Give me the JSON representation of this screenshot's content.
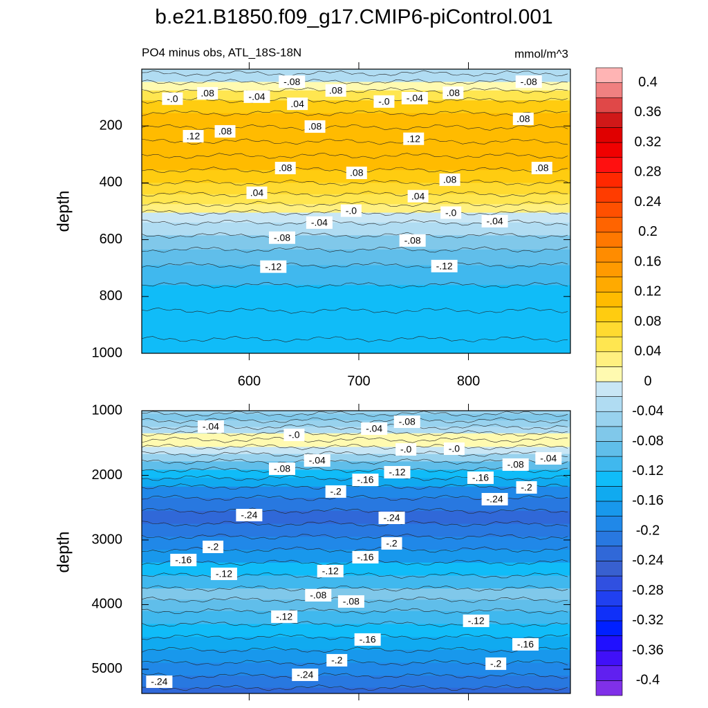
{
  "title": "b.e21.B1850.f09_g17.CMIP6-piControl.001",
  "chart_data": [
    {
      "type": "contour",
      "subtitle_left": "PO4 minus obs, ATL_18S-18N",
      "subtitle_right": "mmol/m^3",
      "ylabel": "depth",
      "xlim": [
        502,
        893
      ],
      "xticks": [
        600,
        700,
        800
      ],
      "xtick_labels": true,
      "ylim": [
        0,
        1000
      ],
      "yticks": [
        200,
        400,
        600,
        800,
        1000
      ],
      "depths": [
        0,
        30,
        60,
        90,
        130,
        180,
        230,
        280,
        330,
        380,
        420,
        460,
        490,
        520,
        560,
        610,
        660,
        720,
        800,
        900,
        1000
      ],
      "values": [
        -0.04,
        -0.04,
        0.0,
        0.05,
        0.08,
        0.1,
        0.11,
        0.11,
        0.1,
        0.08,
        0.06,
        0.04,
        0.02,
        -0.02,
        -0.04,
        -0.08,
        -0.1,
        -0.12,
        -0.14,
        -0.14,
        -0.14
      ],
      "contour_labels": [
        {
          "label": "-.08",
          "x": 639,
          "depth": 44
        },
        {
          "label": ".08",
          "x": 562,
          "depth": 85
        },
        {
          "label": "-.0",
          "x": 530,
          "depth": 104
        },
        {
          "label": "-.04",
          "x": 607,
          "depth": 97
        },
        {
          "label": ".04",
          "x": 644,
          "depth": 122
        },
        {
          "label": ".08",
          "x": 578,
          "depth": 219
        },
        {
          "label": ".12",
          "x": 549,
          "depth": 236
        },
        {
          "label": ".08",
          "x": 660,
          "depth": 202
        },
        {
          "label": "-.0",
          "x": 723,
          "depth": 114
        },
        {
          "label": ".08",
          "x": 679,
          "depth": 75
        },
        {
          "label": ".12",
          "x": 750,
          "depth": 245
        },
        {
          "label": ".08",
          "x": 633,
          "depth": 348
        },
        {
          "label": ".08",
          "x": 698,
          "depth": 365
        },
        {
          "label": ".04",
          "x": 607,
          "depth": 435
        },
        {
          "label": ".04",
          "x": 754,
          "depth": 447
        },
        {
          "label": "-.0",
          "x": 693,
          "depth": 498
        },
        {
          "label": "-.04",
          "x": 664,
          "depth": 540
        },
        {
          "label": "-.08",
          "x": 630,
          "depth": 593
        },
        {
          "label": "-.08",
          "x": 749,
          "depth": 603
        },
        {
          "label": "-.12",
          "x": 622,
          "depth": 695
        },
        {
          "label": "-.12",
          "x": 778,
          "depth": 693
        },
        {
          "label": "-.08",
          "x": 855,
          "depth": 44
        },
        {
          "label": ".08",
          "x": 850,
          "depth": 175
        },
        {
          "label": ".08",
          "x": 867,
          "depth": 348
        },
        {
          "label": ".08",
          "x": 783,
          "depth": 389
        },
        {
          "label": "-.0",
          "x": 784,
          "depth": 505
        },
        {
          "label": "-.04",
          "x": 824,
          "depth": 535
        },
        {
          "label": "-.04",
          "x": 751,
          "depth": 102
        },
        {
          "label": ".08",
          "x": 786,
          "depth": 83
        }
      ]
    },
    {
      "type": "contour",
      "ylabel": "depth",
      "xlim": [
        502,
        893
      ],
      "xticks": [
        600,
        700,
        800
      ],
      "xtick_labels": false,
      "ylim": [
        1000,
        5375
      ],
      "yticks": [
        1000,
        2000,
        3000,
        4000,
        5000
      ],
      "depths": [
        1000,
        1100,
        1200,
        1300,
        1400,
        1500,
        1620,
        1720,
        1850,
        1980,
        2100,
        2250,
        2450,
        2650,
        2850,
        3050,
        3250,
        3450,
        3650,
        3850,
        4000,
        4200,
        4400,
        4600,
        4800,
        5000,
        5200,
        5375
      ],
      "values": [
        -0.06,
        -0.08,
        -0.06,
        -0.04,
        0.01,
        0.01,
        -0.02,
        -0.06,
        -0.1,
        -0.14,
        -0.16,
        -0.2,
        -0.21,
        -0.23,
        -0.21,
        -0.19,
        -0.17,
        -0.13,
        -0.11,
        -0.08,
        -0.09,
        -0.11,
        -0.13,
        -0.15,
        -0.17,
        -0.19,
        -0.21,
        -0.23
      ],
      "contour_labels": [
        {
          "label": "-.04",
          "x": 565,
          "depth": 1246
        },
        {
          "label": "-.0",
          "x": 641,
          "depth": 1374
        },
        {
          "label": "-.04",
          "x": 714,
          "depth": 1278
        },
        {
          "label": "-.08",
          "x": 744,
          "depth": 1171
        },
        {
          "label": "-.0",
          "x": 743,
          "depth": 1599
        },
        {
          "label": "-.0",
          "x": 787,
          "depth": 1588
        },
        {
          "label": "-.04",
          "x": 662,
          "depth": 1770
        },
        {
          "label": "-.08",
          "x": 630,
          "depth": 1898
        },
        {
          "label": "-.12",
          "x": 735,
          "depth": 1952
        },
        {
          "label": "-.16",
          "x": 706,
          "depth": 2070
        },
        {
          "label": "-.2",
          "x": 679,
          "depth": 2251
        },
        {
          "label": "-.16",
          "x": 811,
          "depth": 2037
        },
        {
          "label": "-.08",
          "x": 843,
          "depth": 1834
        },
        {
          "label": "-.04",
          "x": 873,
          "depth": 1738
        },
        {
          "label": "-.2",
          "x": 853,
          "depth": 2187
        },
        {
          "label": "-.24",
          "x": 824,
          "depth": 2369
        },
        {
          "label": "-.24",
          "x": 600,
          "depth": 2615
        },
        {
          "label": "-.24",
          "x": 730,
          "depth": 2658
        },
        {
          "label": "-.2",
          "x": 730,
          "depth": 3053
        },
        {
          "label": "-.2",
          "x": 567,
          "depth": 3107
        },
        {
          "label": "-.16",
          "x": 540,
          "depth": 3310
        },
        {
          "label": "-.16",
          "x": 706,
          "depth": 3267
        },
        {
          "label": "-.12",
          "x": 577,
          "depth": 3524
        },
        {
          "label": "-.12",
          "x": 674,
          "depth": 3481
        },
        {
          "label": "-.08",
          "x": 663,
          "depth": 3856
        },
        {
          "label": "-.08",
          "x": 693,
          "depth": 3952
        },
        {
          "label": "-.12",
          "x": 632,
          "depth": 4187
        },
        {
          "label": "-.12",
          "x": 807,
          "depth": 4251
        },
        {
          "label": "-.16",
          "x": 708,
          "depth": 4540
        },
        {
          "label": "-.16",
          "x": 852,
          "depth": 4615
        },
        {
          "label": "-.2",
          "x": 680,
          "depth": 4861
        },
        {
          "label": "-.2",
          "x": 825,
          "depth": 4914
        },
        {
          "label": "-.24",
          "x": 518,
          "depth": 5193
        },
        {
          "label": "-.24",
          "x": 651,
          "depth": 5086
        }
      ]
    }
  ],
  "colorbar": {
    "levels": [
      -0.4,
      -0.38,
      -0.36,
      -0.34,
      -0.32,
      -0.3,
      -0.28,
      -0.26,
      -0.24,
      -0.22,
      -0.2,
      -0.18,
      -0.16,
      -0.14,
      -0.12,
      -0.1,
      -0.08,
      -0.06,
      -0.04,
      -0.02,
      0,
      0.02,
      0.04,
      0.06,
      0.08,
      0.1,
      0.12,
      0.14,
      0.16,
      0.18,
      0.2,
      0.22,
      0.24,
      0.26,
      0.28,
      0.3,
      0.32,
      0.34,
      0.36,
      0.38,
      0.4
    ],
    "colors": [
      "#8030e8",
      "#6020f0",
      "#4010f8",
      "#2010ff",
      "#0020ff",
      "#1030f8",
      "#2040f0",
      "#3050e0",
      "#3860d0",
      "#3068d8",
      "#2878e0",
      "#2088e8",
      "#1898ec",
      "#10aaf0",
      "#10bcf8",
      "#40b8ee",
      "#60beea",
      "#80c8ea",
      "#98d2ee",
      "#b0dcf2",
      "#c8e6f5",
      "#fffab0",
      "#fff080",
      "#ffe650",
      "#ffda30",
      "#ffcc10",
      "#ffbb00",
      "#ffaa00",
      "#ff9a00",
      "#ff8c00",
      "#ff7800",
      "#ff6400",
      "#ff5000",
      "#ff3c00",
      "#ff2800",
      "#ff1010",
      "#f00000",
      "#e00000",
      "#d01818",
      "#e04848",
      "#f08080",
      "#ffb4b4"
    ],
    "ticks": [
      -0.4,
      -0.36,
      -0.32,
      -0.28,
      -0.24,
      -0.2,
      -0.16,
      -0.12,
      -0.08,
      -0.04,
      0,
      0.04,
      0.08,
      0.12,
      0.16,
      0.2,
      0.24,
      0.28,
      0.32,
      0.36,
      0.4
    ]
  }
}
